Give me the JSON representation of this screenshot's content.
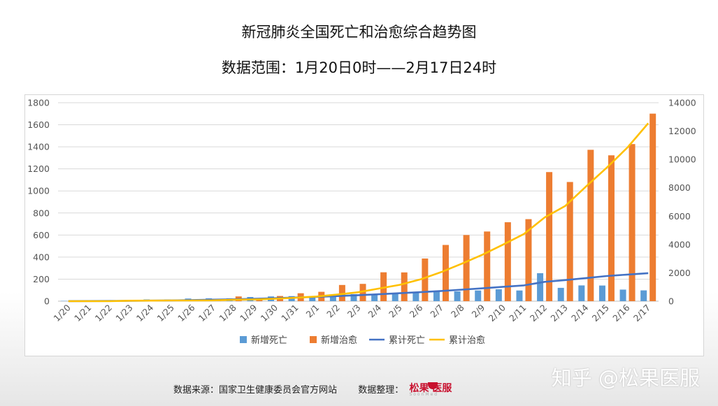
{
  "titles": {
    "line1": "新冠肺炎全国死亡和治愈综合趋势图",
    "line2": "数据范围：1月20日0时——2月17日24时"
  },
  "footer": {
    "source": "数据来源：国家卫生健康委员会官方网站",
    "organizer_label": "数据整理：",
    "logo_text": "松果 医服",
    "logo_sub": "SoonMed"
  },
  "watermark": "知乎 @松果医服",
  "colors": {
    "new_deaths": "#5b9bd5",
    "new_cured": "#ed7d31",
    "cum_deaths": "#4472c4",
    "cum_cured": "#ffc000",
    "grid": "#d9d9d9"
  },
  "chart_data": {
    "type": "bar",
    "title": "新冠肺炎全国死亡和治愈综合趋势图",
    "subtitle": "数据范围：1月20日0时——2月17日24时",
    "categories": [
      "1/20",
      "1/21",
      "1/22",
      "1/23",
      "1/24",
      "1/25",
      "1/26",
      "1/27",
      "1/28",
      "1/29",
      "1/30",
      "1/31",
      "2/1",
      "2/2",
      "2/3",
      "2/4",
      "2/5",
      "2/6",
      "2/7",
      "2/8",
      "2/9",
      "2/10",
      "2/11",
      "2/12",
      "2/13",
      "2/14",
      "2/15",
      "2/16",
      "2/17"
    ],
    "left_axis": {
      "ylim": [
        0,
        1800
      ],
      "ticks": [
        "0",
        "200",
        "400",
        "600",
        "800",
        "1000",
        "1200",
        "1400",
        "1600",
        "1800"
      ]
    },
    "right_axis": {
      "ylim": [
        0,
        14000
      ],
      "ticks": [
        "0",
        "2000",
        "4000",
        "6000",
        "8000",
        "10000",
        "12000",
        "14000"
      ]
    },
    "grid": true,
    "legend_position": "bottom",
    "series": [
      {
        "name": "新增死亡",
        "type": "bar",
        "axis": "left",
        "values": [
          3,
          0,
          8,
          8,
          16,
          15,
          24,
          26,
          26,
          38,
          43,
          46,
          45,
          57,
          64,
          65,
          73,
          73,
          86,
          89,
          97,
          108,
          97,
          254,
          121,
          143,
          142,
          105,
          98
        ]
      },
      {
        "name": "新增治愈",
        "type": "bar",
        "axis": "left",
        "values": [
          0,
          0,
          0,
          6,
          3,
          11,
          2,
          9,
          43,
          21,
          47,
          72,
          85,
          147,
          157,
          262,
          261,
          387,
          510,
          600,
          632,
          716,
          744,
          1171,
          1081,
          1373,
          1323,
          1425,
          1701
        ]
      },
      {
        "name": "累计死亡",
        "type": "line",
        "axis": "right",
        "values": [
          6,
          9,
          17,
          25,
          41,
          56,
          80,
          106,
          132,
          170,
          213,
          259,
          304,
          361,
          425,
          490,
          563,
          636,
          722,
          811,
          908,
          1016,
          1113,
          1367,
          1488,
          1631,
          1773,
          1878,
          1976
        ]
      },
      {
        "name": "累计治愈",
        "type": "line",
        "axis": "right",
        "values": [
          0,
          0,
          0,
          34,
          38,
          49,
          51,
          60,
          103,
          124,
          171,
          243,
          328,
          475,
          632,
          892,
          1153,
          1540,
          2050,
          2649,
          3281,
          3996,
          4740,
          5911,
          6723,
          8096,
          9419,
          10844,
          12552
        ]
      }
    ]
  }
}
